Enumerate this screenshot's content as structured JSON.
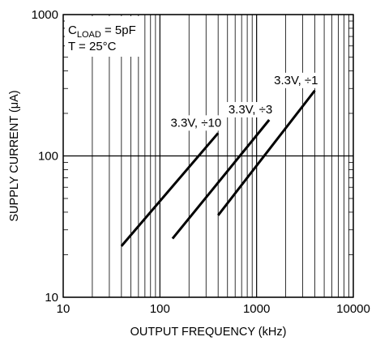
{
  "chart_data": {
    "type": "line",
    "x_scale": "log",
    "y_scale": "log",
    "xlim": [
      10,
      10000
    ],
    "ylim": [
      10,
      1000
    ],
    "xlabel": "OUTPUT FREQUENCY (kHz)",
    "ylabel": "SUPPLY CURRENT (μA)",
    "x_ticks": [
      10,
      100,
      1000,
      10000
    ],
    "x_tick_labels": [
      "10",
      "100",
      "1000",
      "10000"
    ],
    "y_ticks": [
      10,
      100,
      1000
    ],
    "y_tick_labels": [
      "10",
      "100",
      "1000"
    ],
    "grid": true,
    "conditions": {
      "cload_prefix": "C",
      "cload_subscript": "LOAD",
      "cload_value": " = 5pF",
      "temperature": "T = 25°C"
    },
    "series": [
      {
        "name": "3.3V, ÷10",
        "x": [
          40,
          400
        ],
        "y": [
          23,
          145
        ]
      },
      {
        "name": "3.3V, ÷3",
        "x": [
          135,
          1350
        ],
        "y": [
          26,
          180
        ]
      },
      {
        "name": "3.3V, ÷1",
        "x": [
          400,
          4000
        ],
        "y": [
          38,
          290
        ]
      }
    ]
  }
}
